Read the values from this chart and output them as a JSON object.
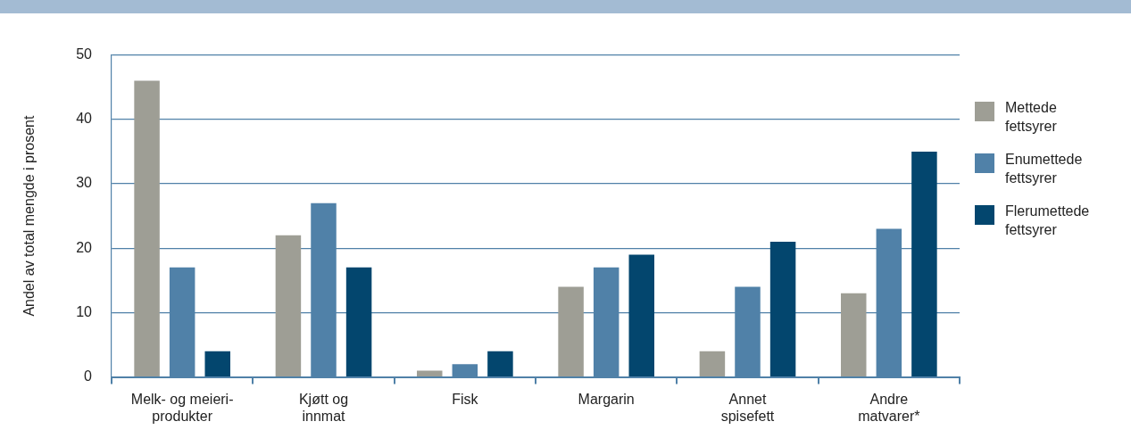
{
  "chart_data": {
    "type": "bar",
    "ylabel": "Andel av total mengde i prosent",
    "categories": [
      "Melk- og meieri-\nprodukter",
      "Kjøtt og\ninnmat",
      "Fisk",
      "Margarin",
      "Annet\nspisefett",
      "Andre\nmatvarer*"
    ],
    "series": [
      {
        "name": "Mettede\nfettsyrer",
        "color": "#9e9e95",
        "values": [
          46,
          22,
          1,
          14,
          4,
          13
        ]
      },
      {
        "name": "Enumettede\nfettsyrer",
        "color": "#5081a8",
        "values": [
          17,
          27,
          2,
          17,
          14,
          23
        ]
      },
      {
        "name": "Flerumettede\nfettsyrer",
        "color": "#03466e",
        "values": [
          4,
          17,
          4,
          19,
          21,
          35
        ]
      }
    ],
    "ylim": [
      0,
      50
    ],
    "yticks": [
      0,
      10,
      20,
      30,
      40,
      50
    ],
    "grid": "y",
    "legend": "right"
  }
}
